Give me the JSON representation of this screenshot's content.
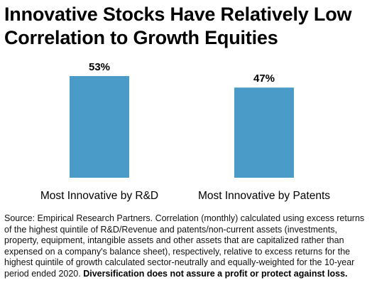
{
  "title_line1": "Innovative Stocks Have Relatively Low",
  "title_line2": "Correlation to Growth Equities",
  "source_text": "Source: Empirical Research Partners. Correlation (monthly) calculated using excess returns of the highest quintile of R&D/Revenue and patents/non-current assets (investments, property, equipment, intangible assets and other assets that are capitalized rather than expensed on a company's balance sheet), respectively, relative to excess returns for the highest quintile of growth calculated sector-neutrally and equally-weighted for the 10-year period ended 2020.",
  "disclaimer": "Diversification does not assure a profit or protect against loss.",
  "bar_color": "#4a9bc7",
  "chart_data": {
    "type": "bar",
    "categories": [
      "Most Innovative by R&D",
      "Most Innovative by Patents"
    ],
    "values": [
      53,
      47
    ],
    "data_labels": [
      "53%",
      "47%"
    ],
    "value_unit": "%",
    "title": "",
    "xlabel": "",
    "ylabel": "",
    "ylim": [
      0,
      53
    ],
    "grid": false,
    "legend": "none"
  }
}
